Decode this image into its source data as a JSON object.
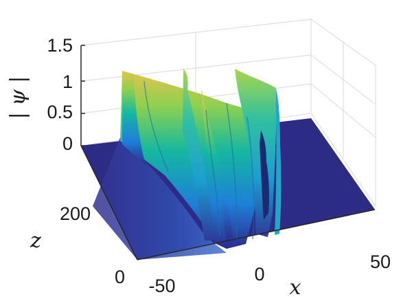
{
  "chart_data": {
    "type": "surface",
    "colormap": "parula",
    "view": "3d",
    "grid": true,
    "xlabel": "x",
    "ylabel": "z",
    "zlabel": "| ψ |",
    "xlim": [
      -50,
      50
    ],
    "ylim": [
      0,
      300
    ],
    "zlim": [
      0,
      1.5
    ],
    "x_ticks": [
      "-50",
      "0",
      "50"
    ],
    "y_ticks": [
      "0",
      "200"
    ],
    "z_ticks": [
      "0",
      "0.5",
      "1",
      "1.5"
    ],
    "peaks": [
      {
        "x": -27,
        "z_start": 0,
        "z_end": 300,
        "amplitude": [
          1.0,
          1.05
        ]
      },
      {
        "x": -8,
        "z_start": 120,
        "z_end": 300,
        "amplitude": [
          0.95,
          1.1
        ]
      },
      {
        "x": 0,
        "z_start": 0,
        "z_end": 300,
        "amplitude": [
          1.0,
          1.1
        ]
      },
      {
        "x": 8,
        "z_start": 80,
        "z_end": 300,
        "amplitude": [
          0.95,
          1.05
        ]
      },
      {
        "x": 15,
        "z_start": 200,
        "z_end": 300,
        "amplitude": [
          0.9,
          1.0
        ]
      }
    ]
  }
}
